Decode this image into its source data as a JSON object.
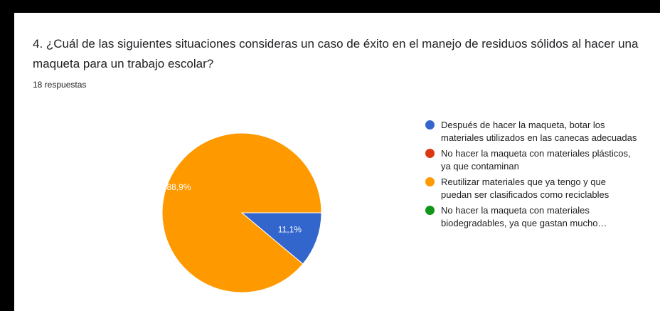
{
  "question": {
    "title": "4. ¿Cuál de las siguientes situaciones consideras un caso de éxito en el manejo de residuos sólidos al hacer una maqueta para un trabajo escolar?",
    "responses": "18 respuestas"
  },
  "chart_data": {
    "type": "pie",
    "title": "",
    "slices": [
      {
        "label": "Después de hacer la maqueta, botar los materiales utilizados en las canecas adecuadas",
        "value": 11.1,
        "display": "11,1%",
        "color": "#3366cc"
      },
      {
        "label": "No hacer la maqueta con materiales plásticos, ya que contaminan",
        "value": 0,
        "display": "",
        "color": "#dc3912"
      },
      {
        "label": "Reutilizar materiales que ya tengo y que puedan ser clasificados como reciclables",
        "value": 88.9,
        "display": "88,9%",
        "color": "#ff9900"
      },
      {
        "label": "No hacer la maqueta con materiales biodegradables, ya que gastan mucho…",
        "value": 0,
        "display": "",
        "color": "#109618"
      }
    ],
    "legend_position": "right"
  }
}
